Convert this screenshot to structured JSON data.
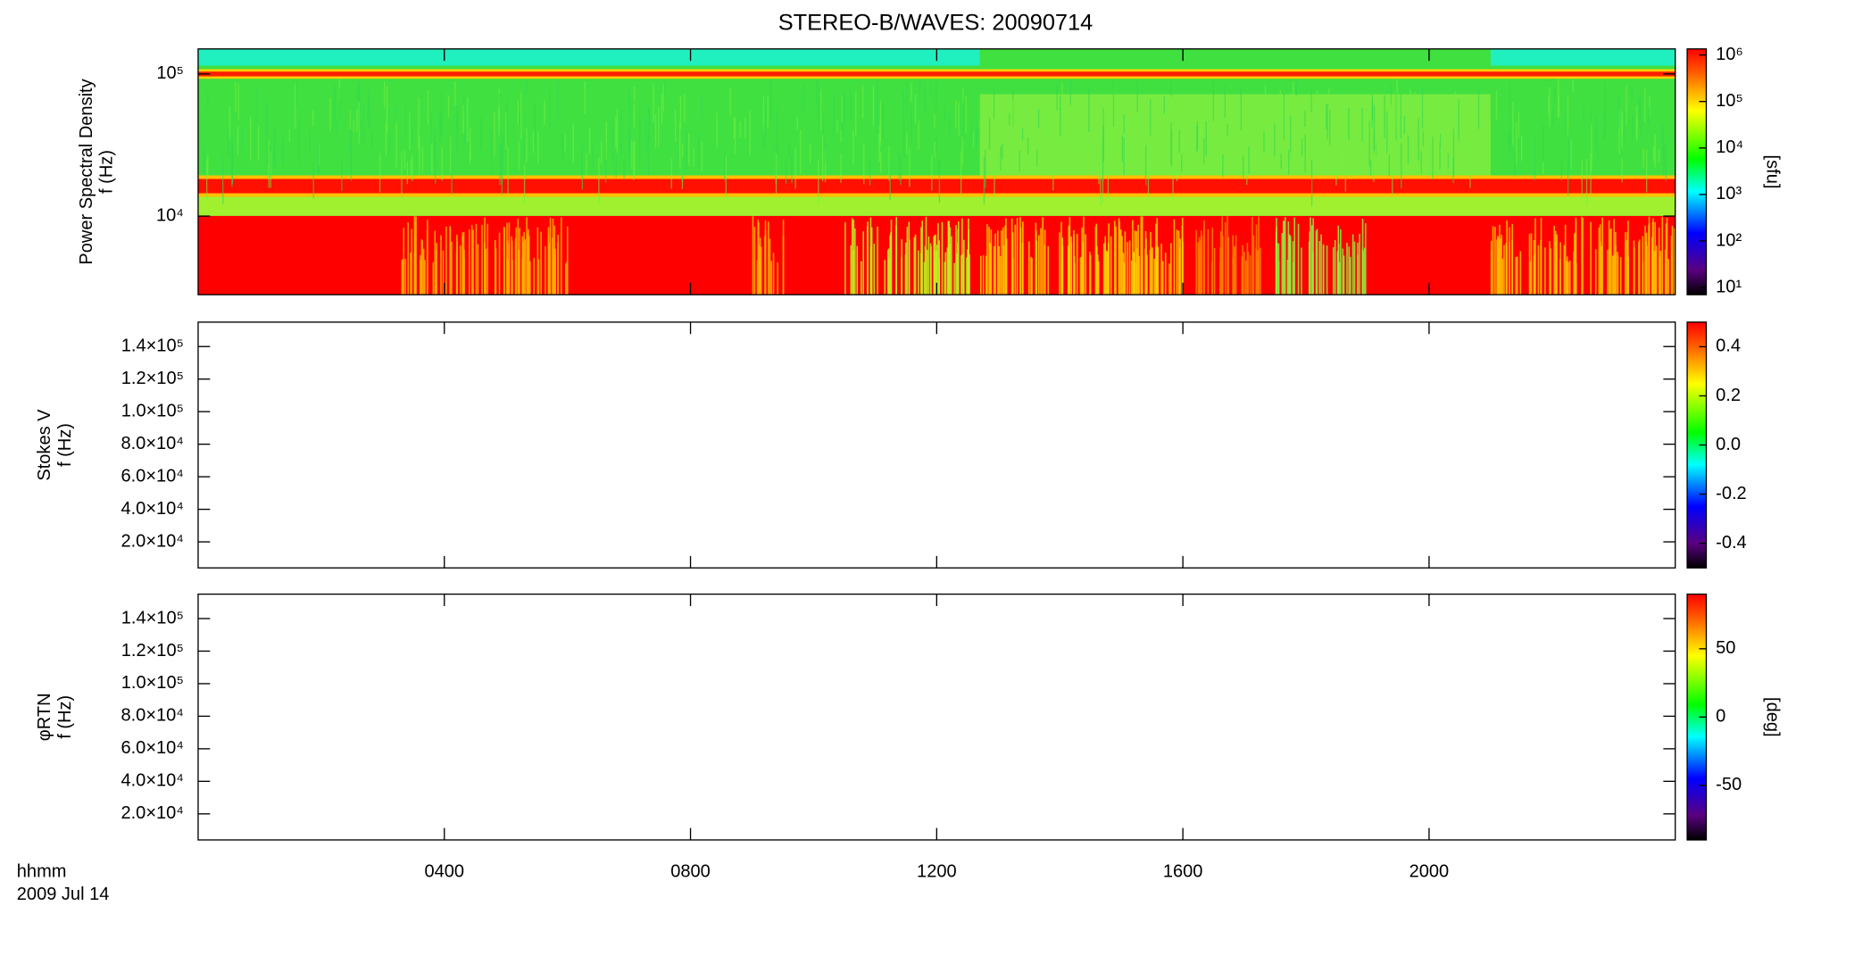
{
  "title": "STEREO-B/WAVES: 20090714",
  "x_axis": {
    "label": [
      "hhmm",
      "2009 Jul 14"
    ],
    "xlim": [
      0,
      24
    ],
    "xticks": [
      {
        "value": 4,
        "label": "0400"
      },
      {
        "value": 8,
        "label": "0800"
      },
      {
        "value": 12,
        "label": "1200"
      },
      {
        "value": 16,
        "label": "1600"
      },
      {
        "value": 20,
        "label": "2000"
      }
    ]
  },
  "chart_data": [
    {
      "type": "heatmap",
      "ylabel": [
        "Power Spectral Density",
        "f (Hz)"
      ],
      "ylog": true,
      "ylim": [
        2800,
        150000
      ],
      "yticks": [
        {
          "value": 10000,
          "label": "10⁴"
        },
        {
          "value": 100000,
          "label": "10⁵"
        }
      ],
      "colorbar": {
        "log": true,
        "clim": [
          7,
          1350000
        ],
        "label": "[sfu]",
        "ticks": [
          {
            "value": 10,
            "label": "10¹"
          },
          {
            "value": 100,
            "label": "10²"
          },
          {
            "value": 1000,
            "label": "10³"
          },
          {
            "value": 10000,
            "label": "10⁴"
          },
          {
            "value": 100000,
            "label": "10⁵"
          },
          {
            "value": 1000000,
            "label": "10⁶"
          }
        ]
      }
    },
    {
      "type": "heatmap",
      "ylabel": [
        "Stokes V",
        "f (Hz)"
      ],
      "ylog": false,
      "ylim": [
        4000,
        155000
      ],
      "yticks": [
        {
          "value": 20000,
          "label": "2.0×10⁴"
        },
        {
          "value": 40000,
          "label": "4.0×10⁴"
        },
        {
          "value": 60000,
          "label": "6.0×10⁴"
        },
        {
          "value": 80000,
          "label": "8.0×10⁴"
        },
        {
          "value": 100000,
          "label": "1.0×10⁵"
        },
        {
          "value": 120000,
          "label": "1.2×10⁵"
        },
        {
          "value": 140000,
          "label": "1.4×10⁵"
        }
      ],
      "colorbar": {
        "log": false,
        "clim": [
          -0.5,
          0.5
        ],
        "ticks": [
          -0.4,
          -0.2,
          {
            "value": 0,
            "label": "0.0"
          },
          0.2,
          0.4
        ]
      }
    },
    {
      "type": "heatmap",
      "ylabel": [
        "φRTN",
        "f (Hz)"
      ],
      "ylog": false,
      "ylim": [
        4000,
        155000
      ],
      "yticks": [
        {
          "value": 20000,
          "label": "2.0×10⁴"
        },
        {
          "value": 40000,
          "label": "4.0×10⁴"
        },
        {
          "value": 60000,
          "label": "6.0×10⁴"
        },
        {
          "value": 80000,
          "label": "8.0×10⁴"
        },
        {
          "value": 100000,
          "label": "1.0×10⁵"
        },
        {
          "value": 120000,
          "label": "1.2×10⁵"
        },
        {
          "value": 140000,
          "label": "1.4×10⁵"
        }
      ],
      "colorbar": {
        "log": false,
        "clim": [
          -90,
          90
        ],
        "label": "[deg]",
        "ticks": [
          -50,
          0,
          50
        ]
      }
    }
  ]
}
